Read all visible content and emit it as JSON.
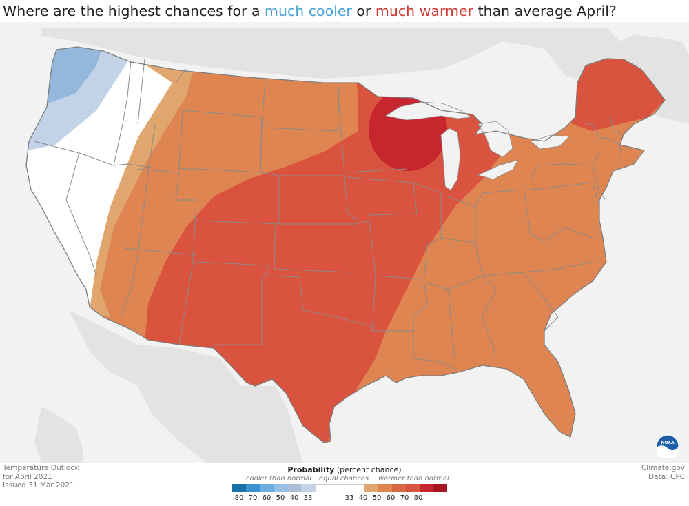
{
  "title": {
    "prefix": "Where are the highest chances for a ",
    "cool_text": "much cooler",
    "middle": " or ",
    "warm_text": "much warmer",
    "suffix": " than average April?"
  },
  "map": {
    "regions": [
      {
        "name": "pacific-northwest-coast",
        "category": "cooler 40-50"
      },
      {
        "name": "northwest-interior",
        "category": "cooler 33-40"
      },
      {
        "name": "far-west",
        "category": "equal chances"
      },
      {
        "name": "intermountain-west",
        "category": "warmer 33-40"
      },
      {
        "name": "northern-plains-and-east",
        "category": "warmer 40-50"
      },
      {
        "name": "southern-plains-midwest",
        "category": "warmer 50-60"
      },
      {
        "name": "western-great-lakes",
        "category": "warmer 60-70"
      },
      {
        "name": "northern-new-england",
        "category": "warmer 50-60"
      }
    ],
    "colors": {
      "land_background": "#e6e6e6",
      "water": "#f2f2f2",
      "border": "#8c8c8c",
      "cool_45": "#93b8db",
      "cool_35": "#c3d3e7",
      "equal": "#ffffff",
      "warm_35": "#e0a66e",
      "warm_45": "#de8552",
      "warm_55": "#d9533f",
      "warm_65": "#c8262e"
    }
  },
  "footer_left": {
    "line1": "Temperature Outlook",
    "line2": "for April 2021",
    "line3": "Issued 31 Mar 2021"
  },
  "footer_right": {
    "line1": "Climate.gov",
    "line2": "Data: CPC"
  },
  "legend": {
    "title_bold": "Probability",
    "title_rest": " (percent chance)",
    "cooler_label": "cooler than normal",
    "equal_label": "equal chances",
    "warmer_label": "warmer than normal",
    "cool_colors": [
      "#1a6faa",
      "#3a92cf",
      "#6aaee0",
      "#97c1e4",
      "#a9bfd9",
      "#c6d3e6"
    ],
    "warm_colors": [
      "#e0a66e",
      "#de8552",
      "#da6848",
      "#d9533f",
      "#c8262e",
      "#a8171f"
    ],
    "cool_ticks": [
      "80",
      "70",
      "60",
      "50",
      "40",
      "33"
    ],
    "warm_ticks": [
      "33",
      "40",
      "50",
      "60",
      "70",
      "80"
    ]
  },
  "logo": {
    "text": "NOAA"
  }
}
